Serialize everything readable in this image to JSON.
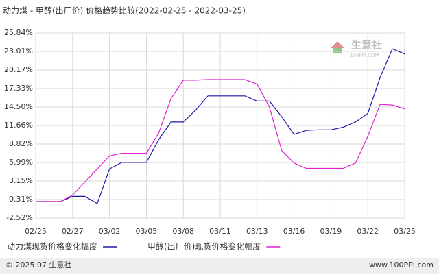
{
  "chart_data": {
    "type": "line",
    "title": "动力煤 - 甲醇(出厂价) 价格趋势比较(2022-02-25 - 2022-03-25)",
    "watermark": {
      "brand": "生意社",
      "site": "100PPI.COM"
    },
    "categories": [
      "02/25",
      null,
      null,
      "02/27",
      null,
      null,
      "03/02",
      null,
      null,
      "03/05",
      null,
      null,
      "03/08",
      null,
      null,
      "03/11",
      null,
      null,
      "03/13",
      null,
      null,
      "03/16",
      null,
      null,
      "03/19",
      null,
      null,
      "03/22",
      null,
      null,
      "03/25"
    ],
    "series": [
      {
        "name": "动力煤现货价格变化幅度",
        "color": "#1a1aa6",
        "values": [
          0,
          0,
          0,
          0.8,
          0.8,
          -0.3,
          5,
          6.0,
          6.0,
          6.0,
          9.5,
          12.2,
          12.2,
          14,
          16.2,
          16.2,
          16.2,
          16.2,
          15.4,
          15.4,
          13,
          10.3,
          10.9,
          11.0,
          11.0,
          11.4,
          12.2,
          13.5,
          19,
          23.4,
          22.6
        ]
      },
      {
        "name": "甲醇(出厂价)现货价格变化幅度",
        "color": "#e020d0",
        "values": [
          0,
          0,
          0,
          1.0,
          3,
          5,
          7,
          7.4,
          7.4,
          7.4,
          10.5,
          15.8,
          18.6,
          18.6,
          18.7,
          18.7,
          18.7,
          18.7,
          18.0,
          14.5,
          7.8,
          5.9,
          5.1,
          5.1,
          5.1,
          5.1,
          5.9,
          10.0,
          14.9,
          14.8,
          14.2
        ]
      }
    ],
    "ylim": [
      -2.52,
      25.84
    ],
    "yticks": [
      {
        "value": -2.52,
        "label": "-2.52%"
      },
      {
        "value": 0.31,
        "label": "0.31%"
      },
      {
        "value": 3.15,
        "label": "3.15%"
      },
      {
        "value": 5.99,
        "label": "5.99%"
      },
      {
        "value": 8.82,
        "label": "8.82%"
      },
      {
        "value": 11.66,
        "label": "11.66%"
      },
      {
        "value": 14.5,
        "label": "14.50%"
      },
      {
        "value": 17.33,
        "label": "17.33%"
      },
      {
        "value": 20.17,
        "label": "20.17%"
      },
      {
        "value": 23.01,
        "label": "23.01%"
      },
      {
        "value": 25.84,
        "label": "25.84%"
      }
    ],
    "grid": true,
    "footer": {
      "left": "© 2025.07 生意社",
      "right": "www.100PPI.com"
    }
  }
}
